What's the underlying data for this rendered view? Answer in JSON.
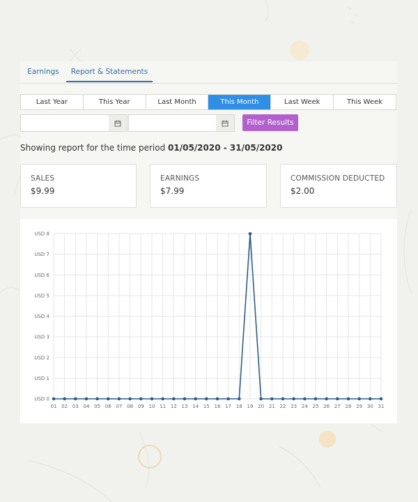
{
  "tabs": [
    "Earnings",
    "Report & Statements"
  ],
  "periods": [
    "Last Year",
    "This Year",
    "Last Month",
    "This Month",
    "Last Week",
    "This Week"
  ],
  "active_period": "This Month",
  "date_from": {
    "value": "",
    "placeholder": ""
  },
  "date_to": {
    "value": "",
    "placeholder": ""
  },
  "filter_label": "Filter Results",
  "report": {
    "prefix": "Showing report for the time period ",
    "range": "01/05/2020 - 31/05/2020"
  },
  "stats": [
    {
      "label": "SALES",
      "value": "$9.99"
    },
    {
      "label": "EARNINGS",
      "value": "$7.99"
    },
    {
      "label": "COMMISSION DEDUCTED",
      "value": "$2.00"
    }
  ],
  "colors": {
    "accent": "#2f8ee5",
    "filter": "#b160cc",
    "line": "#2b5d8a"
  },
  "chart_data": {
    "type": "line",
    "x": [
      "01",
      "02",
      "03",
      "04",
      "05",
      "06",
      "07",
      "08",
      "09",
      "10",
      "11",
      "12",
      "13",
      "14",
      "15",
      "16",
      "17",
      "18",
      "19",
      "20",
      "21",
      "22",
      "23",
      "24",
      "25",
      "26",
      "27",
      "28",
      "29",
      "30",
      "31"
    ],
    "series": [
      {
        "values": [
          0,
          0,
          0,
          0,
          0,
          0,
          0,
          0,
          0,
          0,
          0,
          0,
          0,
          0,
          0,
          0,
          0,
          0,
          7.99,
          0,
          0,
          0,
          0,
          0,
          0,
          0,
          0,
          0,
          0,
          0,
          0
        ]
      }
    ],
    "y_ticks": [
      "USD 0",
      "USD 1",
      "USD 2",
      "USD 3",
      "USD 4",
      "USD 5",
      "USD 6",
      "USD 7",
      "USD 8"
    ],
    "ylim": [
      0,
      8
    ],
    "grid": true
  }
}
